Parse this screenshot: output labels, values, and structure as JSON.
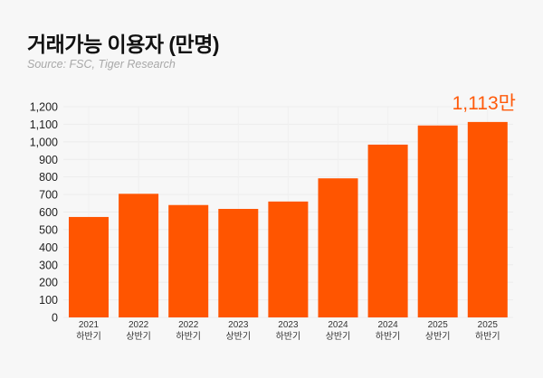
{
  "chart_data": {
    "type": "bar",
    "title": "거래가능 이용자 (만명)",
    "subtitle": "Source: FSC, Tiger Research",
    "categories": [
      [
        "2021",
        "하반기"
      ],
      [
        "2022",
        "상반기"
      ],
      [
        "2022",
        "하반기"
      ],
      [
        "2023",
        "상반기"
      ],
      [
        "2023",
        "하반기"
      ],
      [
        "2024",
        "상반기"
      ],
      [
        "2024",
        "하반기"
      ],
      [
        "2025",
        "상반기"
      ],
      [
        "2025",
        "하반기"
      ]
    ],
    "values": [
      572,
      704,
      640,
      618,
      660,
      792,
      984,
      1093,
      1113
    ],
    "ylim": [
      0,
      1200
    ],
    "yticks": [
      "0",
      "100",
      "200",
      "300",
      "400",
      "500",
      "600",
      "700",
      "800",
      "900",
      "1,000",
      "1,100",
      "1,200"
    ],
    "grid": true,
    "bar_color": "#ff5500",
    "annotation": {
      "index": 8,
      "text": "1,113만"
    },
    "xlabel": "",
    "ylabel": ""
  }
}
